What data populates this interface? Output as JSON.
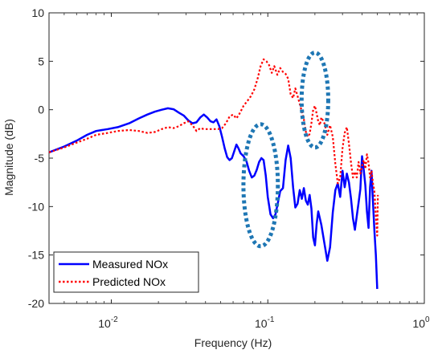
{
  "chart_data": {
    "type": "line",
    "xscale": "log",
    "xlim": [
      0.004,
      1
    ],
    "ylim": [
      -20,
      10
    ],
    "xlabel": "Frequency (Hz)",
    "ylabel": "Magnitude (dB)",
    "grid": false,
    "legend": "bottom-left",
    "x_ticks": [
      {
        "value": 0.01,
        "base": "10",
        "exp": "-2"
      },
      {
        "value": 0.1,
        "base": "10",
        "exp": "-1"
      },
      {
        "value": 1,
        "base": "10",
        "exp": "0"
      }
    ],
    "y_ticks": [
      {
        "value": 10,
        "label": "10"
      },
      {
        "value": 5,
        "label": "5"
      },
      {
        "value": 0,
        "label": "0"
      },
      {
        "value": -5,
        "label": "-5"
      },
      {
        "value": -10,
        "label": "-10"
      },
      {
        "value": -15,
        "label": "-15"
      },
      {
        "value": -20,
        "label": "-20"
      }
    ],
    "series": [
      {
        "name": "Measured NOx",
        "color": "#0000ff",
        "style": "solid",
        "points": [
          [
            0.004,
            -4.4
          ],
          [
            0.005,
            -3.8
          ],
          [
            0.006,
            -3.2
          ],
          [
            0.007,
            -2.6
          ],
          [
            0.008,
            -2.2
          ],
          [
            0.0095,
            -2.0
          ],
          [
            0.011,
            -1.8
          ],
          [
            0.013,
            -1.4
          ],
          [
            0.015,
            -0.9
          ],
          [
            0.017,
            -0.5
          ],
          [
            0.019,
            -0.2
          ],
          [
            0.021,
            0.0
          ],
          [
            0.023,
            0.15
          ],
          [
            0.025,
            0.05
          ],
          [
            0.027,
            -0.3
          ],
          [
            0.029,
            -0.6
          ],
          [
            0.031,
            -1.1
          ],
          [
            0.033,
            -1.4
          ],
          [
            0.035,
            -1.3
          ],
          [
            0.037,
            -0.8
          ],
          [
            0.039,
            -0.5
          ],
          [
            0.041,
            -0.8
          ],
          [
            0.043,
            -1.2
          ],
          [
            0.045,
            -1.3
          ],
          [
            0.047,
            -1.0
          ],
          [
            0.049,
            -1.7
          ],
          [
            0.051,
            -2.8
          ],
          [
            0.053,
            -4.0
          ],
          [
            0.055,
            -4.9
          ],
          [
            0.057,
            -5.2
          ],
          [
            0.059,
            -5.0
          ],
          [
            0.061,
            -4.3
          ],
          [
            0.063,
            -3.6
          ],
          [
            0.065,
            -4.0
          ],
          [
            0.067,
            -4.5
          ],
          [
            0.07,
            -4.8
          ],
          [
            0.073,
            -5.3
          ],
          [
            0.076,
            -6.3
          ],
          [
            0.079,
            -7.0
          ],
          [
            0.082,
            -6.8
          ],
          [
            0.085,
            -6.2
          ],
          [
            0.088,
            -5.4
          ],
          [
            0.091,
            -5.0
          ],
          [
            0.094,
            -5.2
          ],
          [
            0.097,
            -6.8
          ],
          [
            0.1,
            -9.0
          ],
          [
            0.104,
            -10.8
          ],
          [
            0.108,
            -11.2
          ],
          [
            0.112,
            -10.8
          ],
          [
            0.116,
            -9.6
          ],
          [
            0.12,
            -8.4
          ],
          [
            0.125,
            -8.1
          ],
          [
            0.13,
            -5.2
          ],
          [
            0.135,
            -3.7
          ],
          [
            0.14,
            -5.0
          ],
          [
            0.145,
            -8.0
          ],
          [
            0.15,
            -10.1
          ],
          [
            0.155,
            -9.7
          ],
          [
            0.16,
            -8.3
          ],
          [
            0.165,
            -9.2
          ],
          [
            0.17,
            -8.1
          ],
          [
            0.175,
            -9.4
          ],
          [
            0.18,
            -9.8
          ],
          [
            0.185,
            -8.8
          ],
          [
            0.19,
            -10.2
          ],
          [
            0.195,
            -13.2
          ],
          [
            0.2,
            -14.0
          ],
          [
            0.205,
            -11.8
          ],
          [
            0.21,
            -10.5
          ],
          [
            0.22,
            -11.9
          ],
          [
            0.23,
            -13.8
          ],
          [
            0.24,
            -15.6
          ],
          [
            0.25,
            -14.2
          ],
          [
            0.26,
            -10.6
          ],
          [
            0.27,
            -8.3
          ],
          [
            0.28,
            -7.6
          ],
          [
            0.29,
            -9.0
          ],
          [
            0.3,
            -6.3
          ],
          [
            0.31,
            -8.0
          ],
          [
            0.32,
            -6.6
          ],
          [
            0.33,
            -7.5
          ],
          [
            0.34,
            -9.2
          ],
          [
            0.35,
            -11.2
          ],
          [
            0.36,
            -12.4
          ],
          [
            0.37,
            -11.0
          ],
          [
            0.38,
            -9.6
          ],
          [
            0.39,
            -8.2
          ],
          [
            0.4,
            -4.8
          ],
          [
            0.41,
            -6.2
          ],
          [
            0.42,
            -7.8
          ],
          [
            0.43,
            -10.5
          ],
          [
            0.44,
            -12.2
          ],
          [
            0.45,
            -8.0
          ],
          [
            0.46,
            -6.3
          ],
          [
            0.47,
            -9.5
          ],
          [
            0.48,
            -12.5
          ],
          [
            0.49,
            -15.0
          ],
          [
            0.5,
            -18.5
          ]
        ]
      },
      {
        "name": "Predicted NOx",
        "color": "#ff0000",
        "style": "dotted",
        "points": [
          [
            0.004,
            -4.4
          ],
          [
            0.005,
            -3.9
          ],
          [
            0.006,
            -3.4
          ],
          [
            0.007,
            -3.0
          ],
          [
            0.008,
            -2.6
          ],
          [
            0.0095,
            -2.4
          ],
          [
            0.011,
            -2.2
          ],
          [
            0.013,
            -2.1
          ],
          [
            0.015,
            -2.2
          ],
          [
            0.017,
            -2.4
          ],
          [
            0.019,
            -2.3
          ],
          [
            0.021,
            -2.0
          ],
          [
            0.023,
            -1.8
          ],
          [
            0.025,
            -1.9
          ],
          [
            0.027,
            -1.7
          ],
          [
            0.029,
            -1.4
          ],
          [
            0.031,
            -1.2
          ],
          [
            0.033,
            -1.6
          ],
          [
            0.035,
            -2.2
          ],
          [
            0.037,
            -1.9
          ],
          [
            0.039,
            -2.0
          ],
          [
            0.042,
            -2.0
          ],
          [
            0.045,
            -2.0
          ],
          [
            0.048,
            -2.0
          ],
          [
            0.051,
            -1.9
          ],
          [
            0.054,
            -1.4
          ],
          [
            0.057,
            -0.7
          ],
          [
            0.06,
            -0.5
          ],
          [
            0.063,
            -0.9
          ],
          [
            0.066,
            -0.4
          ],
          [
            0.07,
            0.4
          ],
          [
            0.074,
            0.9
          ],
          [
            0.078,
            1.4
          ],
          [
            0.082,
            2.1
          ],
          [
            0.086,
            3.2
          ],
          [
            0.09,
            4.5
          ],
          [
            0.094,
            5.2
          ],
          [
            0.098,
            5.0
          ],
          [
            0.102,
            4.6
          ],
          [
            0.106,
            3.8
          ],
          [
            0.11,
            4.5
          ],
          [
            0.115,
            3.6
          ],
          [
            0.12,
            4.3
          ],
          [
            0.125,
            3.9
          ],
          [
            0.13,
            3.7
          ],
          [
            0.135,
            3.2
          ],
          [
            0.14,
            1.6
          ],
          [
            0.145,
            1.2
          ],
          [
            0.15,
            2.2
          ],
          [
            0.155,
            1.4
          ],
          [
            0.16,
            0.6
          ],
          [
            0.165,
            -0.2
          ],
          [
            0.17,
            -1.0
          ],
          [
            0.175,
            -2.3
          ],
          [
            0.18,
            -2.8
          ],
          [
            0.185,
            -2.5
          ],
          [
            0.19,
            -1.4
          ],
          [
            0.195,
            0.0
          ],
          [
            0.2,
            0.4
          ],
          [
            0.205,
            -0.4
          ],
          [
            0.21,
            -1.2
          ],
          [
            0.215,
            -1.6
          ],
          [
            0.22,
            -0.8
          ],
          [
            0.23,
            -1.4
          ],
          [
            0.24,
            -2.6
          ],
          [
            0.25,
            -1.6
          ],
          [
            0.26,
            -2.8
          ],
          [
            0.27,
            -5.6
          ],
          [
            0.28,
            -7.6
          ],
          [
            0.29,
            -7.0
          ],
          [
            0.3,
            -4.0
          ],
          [
            0.31,
            -2.4
          ],
          [
            0.32,
            -1.8
          ],
          [
            0.33,
            -3.5
          ],
          [
            0.34,
            -5.5
          ],
          [
            0.35,
            -7.0
          ],
          [
            0.36,
            -6.4
          ],
          [
            0.37,
            -7.0
          ],
          [
            0.38,
            -5.4
          ],
          [
            0.39,
            -6.6
          ],
          [
            0.4,
            -5.8
          ],
          [
            0.41,
            -5.2
          ],
          [
            0.42,
            -6.1
          ],
          [
            0.43,
            -4.6
          ],
          [
            0.44,
            -5.5
          ],
          [
            0.45,
            -7.0
          ],
          [
            0.46,
            -6.3
          ],
          [
            0.47,
            -7.6
          ],
          [
            0.48,
            -8.4
          ],
          [
            0.49,
            -11.0
          ],
          [
            0.5,
            -13.0
          ],
          [
            0.505,
            -8.8
          ]
        ]
      }
    ],
    "annotations": [
      {
        "shape": "ellipse",
        "color": "#1f77b4",
        "style": "dashed",
        "center": [
          0.09,
          -7.8
        ],
        "radius_decades": 0.11,
        "radius_y": 6.3
      },
      {
        "shape": "ellipse",
        "color": "#1f77b4",
        "style": "dashed",
        "center": [
          0.2,
          1.0
        ],
        "radius_decades": 0.085,
        "radius_y": 4.9
      }
    ]
  }
}
